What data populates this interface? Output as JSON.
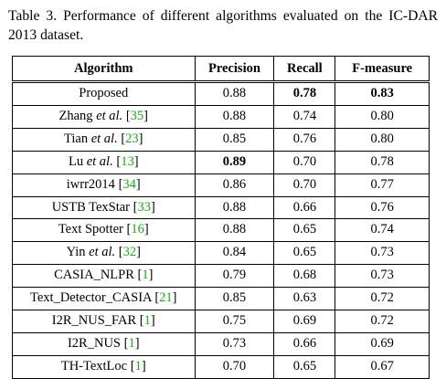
{
  "caption": "Table 3. Performance of different algorithms evaluated on the IC-DAR 2013 dataset.",
  "headers": [
    "Algorithm",
    "Precision",
    "Recall",
    "F-measure"
  ],
  "rows": [
    {
      "name": "Proposed",
      "etal": "",
      "ref": "",
      "precision": "0.88",
      "recall": "0.78",
      "fmeasure": "0.83"
    },
    {
      "name": "Zhang",
      "etal": "et al.",
      "ref": "35",
      "precision": "0.88",
      "recall": "0.74",
      "fmeasure": "0.80"
    },
    {
      "name": "Tian",
      "etal": "et al.",
      "ref": "23",
      "precision": "0.85",
      "recall": "0.76",
      "fmeasure": "0.80"
    },
    {
      "name": "Lu",
      "etal": "et al.",
      "ref": "13",
      "precision": "0.89",
      "recall": "0.70",
      "fmeasure": "0.78"
    },
    {
      "name": "iwrr2014",
      "etal": "",
      "ref": "34",
      "precision": "0.86",
      "recall": "0.70",
      "fmeasure": "0.77"
    },
    {
      "name": "USTB TexStar",
      "etal": "",
      "ref": "33",
      "precision": "0.88",
      "recall": "0.66",
      "fmeasure": "0.76"
    },
    {
      "name": "Text Spotter",
      "etal": "",
      "ref": "16",
      "precision": "0.88",
      "recall": "0.65",
      "fmeasure": "0.74"
    },
    {
      "name": "Yin",
      "etal": "et al.",
      "ref": "32",
      "precision": "0.84",
      "recall": "0.65",
      "fmeasure": "0.73"
    },
    {
      "name": "CASIA_NLPR",
      "etal": "",
      "ref": "1",
      "precision": "0.79",
      "recall": "0.68",
      "fmeasure": "0.73"
    },
    {
      "name": "Text_Detector_CASIA",
      "etal": "",
      "ref": "21",
      "precision": "0.85",
      "recall": "0.63",
      "fmeasure": "0.72"
    },
    {
      "name": "I2R_NUS_FAR",
      "etal": "",
      "ref": "1",
      "precision": "0.75",
      "recall": "0.69",
      "fmeasure": "0.72"
    },
    {
      "name": "I2R_NUS",
      "etal": "",
      "ref": "1",
      "precision": "0.73",
      "recall": "0.66",
      "fmeasure": "0.69"
    },
    {
      "name": "TH-TextLoc",
      "etal": "",
      "ref": "1",
      "precision": "0.70",
      "recall": "0.65",
      "fmeasure": "0.67"
    }
  ],
  "bold_cells": [
    {
      "row": 0,
      "col": "recall"
    },
    {
      "row": 0,
      "col": "fmeasure"
    },
    {
      "row": 3,
      "col": "precision"
    }
  ]
}
